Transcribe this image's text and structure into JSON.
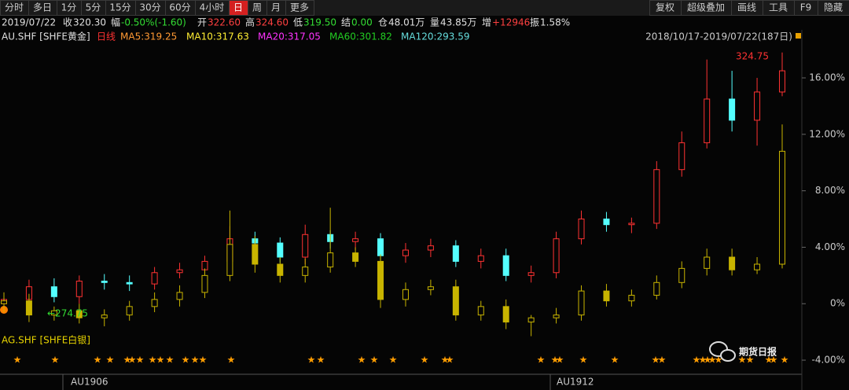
{
  "toolbar": {
    "left": [
      "分时",
      "多日",
      "1分",
      "5分",
      "15分",
      "30分",
      "60分",
      "4小时",
      "日",
      "周",
      "月",
      "更多"
    ],
    "active": "日",
    "right": [
      "复权",
      "超级叠加",
      "画线",
      "工具",
      "F9",
      "隐藏"
    ]
  },
  "info": {
    "date": "2019/07/22",
    "items": [
      {
        "label": "收",
        "value": "320.30",
        "color": "#e0e0e0"
      },
      {
        "label": "幅",
        "value": "-0.50%(-1.60)",
        "color": "#33dd33"
      },
      {
        "label": "开",
        "value": "322.60",
        "color": "#ff4040"
      },
      {
        "label": "高",
        "value": "324.60",
        "color": "#ff4040"
      },
      {
        "label": "低",
        "value": "319.50",
        "color": "#33dd33"
      },
      {
        "label": "结",
        "value": "0.00",
        "color": "#33dd33"
      },
      {
        "label": "仓",
        "value": "48.01万",
        "color": "#e0e0e0"
      },
      {
        "label": "量",
        "value": "43.85万",
        "color": "#e0e0e0"
      },
      {
        "label": "增",
        "value": "+12946",
        "color": "#ff4040"
      },
      {
        "label": "振",
        "value": "1.58%",
        "color": "#e0e0e0"
      }
    ]
  },
  "legend": {
    "period": "日线",
    "ma": [
      {
        "text": "MA5:319.25",
        "color": "#ff9933"
      },
      {
        "text": "MA10:317.63",
        "color": "#ffee33"
      },
      {
        "text": "MA20:317.05",
        "color": "#ff33ff"
      },
      {
        "text": "MA60:301.82",
        "color": "#22cc22"
      },
      {
        "text": "MA120:293.59",
        "color": "#66dddd"
      }
    ],
    "range": "2018/10/17-2019/07/22(187日)"
  },
  "chart_data": {
    "type": "candlestick",
    "ylim": [
      -5,
      19.4
    ],
    "yticks": [
      {
        "value": 16,
        "label": "16.00%"
      },
      {
        "value": 12,
        "label": "12.00%"
      },
      {
        "value": 8,
        "label": "8.00%"
      },
      {
        "value": 4,
        "label": "4.00%"
      },
      {
        "value": 0,
        "label": "0%"
      },
      {
        "value": -4,
        "label": "-4.00%"
      }
    ],
    "annotations": {
      "high": "324.75",
      "low": "←274.75"
    },
    "period_labels": [
      "AU1906",
      "AU1912"
    ],
    "series": [
      {
        "name": "AU.SHF [SHFE黄金]",
        "up_color": "#ff3232",
        "down_color": "#54ffff",
        "open": [
          0.0,
          0.3,
          1.2,
          0.5,
          1.6,
          1.5,
          1.4,
          2.2,
          2.4,
          3.0,
          4.6,
          4.3,
          3.3,
          4.9,
          4.4,
          4.6,
          3.4,
          3.8,
          4.1,
          3.0,
          3.4,
          2.0,
          2.2,
          4.6,
          6.0,
          5.6,
          5.7,
          9.5,
          11.4,
          14.5,
          13.0,
          15.0
        ],
        "high": [
          0.8,
          1.7,
          1.8,
          2.0,
          2.1,
          2.0,
          2.6,
          2.9,
          3.4,
          5.5,
          5.1,
          4.7,
          5.6,
          5.2,
          5.1,
          5.0,
          4.3,
          4.6,
          4.5,
          3.9,
          3.9,
          2.7,
          5.1,
          6.6,
          6.5,
          6.1,
          10.1,
          12.2,
          17.3,
          16.5,
          16.0,
          17.8
        ],
        "low": [
          -0.5,
          -0.3,
          0.1,
          0.0,
          1.0,
          0.9,
          1.0,
          1.8,
          2.0,
          2.6,
          3.8,
          2.9,
          2.8,
          3.9,
          3.8,
          3.0,
          2.9,
          3.3,
          2.6,
          2.5,
          1.6,
          1.5,
          1.8,
          4.2,
          5.1,
          5.0,
          5.3,
          9.0,
          11.0,
          12.2,
          11.2,
          14.7
        ],
        "close": [
          0.3,
          1.2,
          0.5,
          1.6,
          1.5,
          1.4,
          2.2,
          2.4,
          3.0,
          4.6,
          4.3,
          3.3,
          4.9,
          4.4,
          4.6,
          3.4,
          3.8,
          4.1,
          3.0,
          3.4,
          2.0,
          2.2,
          4.6,
          6.0,
          5.6,
          5.7,
          9.5,
          11.4,
          14.5,
          13.0,
          15.0,
          16.5
        ]
      },
      {
        "name": "AG.SHF [SHFE白银]",
        "up_color": "#c8b400",
        "down_color": "#c8b400",
        "open": [
          0.0,
          0.2,
          -0.8,
          -0.5,
          -1.0,
          -0.8,
          -0.2,
          0.3,
          0.8,
          2.0,
          4.2,
          2.8,
          2.0,
          2.6,
          3.6,
          3.0,
          0.3,
          1.0,
          1.2,
          -0.8,
          -0.2,
          -1.3,
          -1.0,
          -0.8,
          0.9,
          0.2,
          0.6,
          1.5,
          2.5,
          3.3,
          2.4,
          2.8
        ],
        "high": [
          0.8,
          0.7,
          -0.2,
          0.0,
          -0.4,
          0.2,
          0.8,
          1.3,
          2.5,
          6.6,
          4.8,
          3.3,
          3.2,
          6.8,
          4.0,
          3.5,
          1.5,
          1.7,
          1.7,
          0.2,
          0.3,
          -0.8,
          -0.3,
          1.3,
          1.4,
          1.0,
          2.0,
          3.0,
          3.9,
          3.9,
          3.3,
          12.7
        ],
        "low": [
          -0.6,
          -1.3,
          -1.2,
          -1.4,
          -1.6,
          -1.2,
          -0.6,
          -0.2,
          0.4,
          1.6,
          2.2,
          1.5,
          1.5,
          2.2,
          2.6,
          -0.3,
          -0.2,
          0.6,
          -1.2,
          -1.2,
          -1.8,
          -2.3,
          -1.4,
          -1.2,
          -0.2,
          -0.2,
          0.3,
          1.1,
          2.0,
          2.0,
          2.1,
          2.5
        ],
        "close": [
          0.2,
          -0.8,
          -0.5,
          -1.0,
          -0.8,
          -0.2,
          0.3,
          0.8,
          2.0,
          4.2,
          2.8,
          2.0,
          2.6,
          3.6,
          3.0,
          0.3,
          1.0,
          1.2,
          -0.8,
          -0.2,
          -1.3,
          -1.0,
          -0.8,
          0.9,
          0.2,
          0.6,
          1.5,
          2.5,
          3.3,
          2.4,
          2.8,
          10.8
        ]
      }
    ]
  },
  "watermark": "期货日报"
}
